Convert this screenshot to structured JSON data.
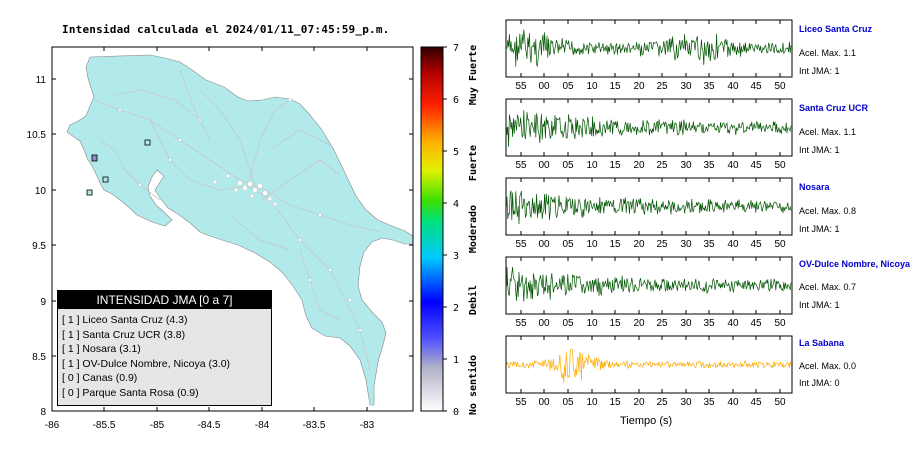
{
  "title": "Intensidad calculada el 2024/01/11_07:45:59_p.m.",
  "map": {
    "y_ticks": [
      "11",
      "10.5",
      "10",
      "9.5",
      "9",
      "8.5",
      "8"
    ],
    "x_ticks": [
      "-86",
      "-85.5",
      "-85",
      "-84.5",
      "-84",
      "-83.5",
      "-83"
    ],
    "land_color": "#b2eaec",
    "road_color": "#c8c8c8"
  },
  "colorbar": {
    "ticks": [
      "0",
      "1",
      "2",
      "3",
      "4",
      "5",
      "6",
      "7"
    ],
    "labels": [
      "No sentido",
      "Debil",
      "Moderado",
      "Fuerte",
      "Muy Fuerte"
    ]
  },
  "legend": {
    "header": "INTENSIDAD JMA [0 a 7]",
    "rows": [
      "[ 1 ]  Liceo Santa Cruz (4.3)",
      "[ 1 ]  Santa Cruz UCR (3.8)",
      "[ 1 ]  Nosara (3.1)",
      "[ 1 ]  OV-Dulce Nombre, Nicoya (3.0)",
      "[ 0 ]  Canas (0.9)",
      "[ 0 ]  Parque Santa Rosa (0.9)"
    ]
  },
  "stations": [
    {
      "name": "Liceo Santa Cruz",
      "acc": "Acel. Max. 1.1",
      "int": "Int JMA: 1",
      "color": "#005500"
    },
    {
      "name": "Santa Cruz UCR",
      "acc": "Acel. Max. 1.1",
      "int": "Int JMA: 1",
      "color": "#005500"
    },
    {
      "name": "Nosara",
      "acc": "Acel. Max. 0.8",
      "int": "Int JMA: 1",
      "color": "#005500"
    },
    {
      "name": "OV-Dulce Nombre, Nicoya",
      "acc": "Acel. Max. 0.7",
      "int": "Int JMA: 1",
      "color": "#005500"
    },
    {
      "name": "La Sabana",
      "acc": "Acel. Max. 0.0",
      "int": "Int JMA: 0",
      "color": "#ffaa00"
    }
  ],
  "time_ticks": [
    "55",
    "00",
    "05",
    "10",
    "15",
    "20",
    "25",
    "30",
    "35",
    "40",
    "45",
    "50"
  ],
  "time_label": "Tiempo (s)"
}
